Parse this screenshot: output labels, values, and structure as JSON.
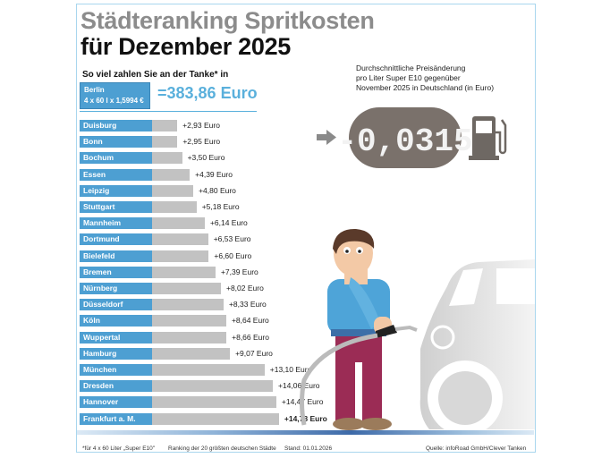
{
  "header": {
    "title_line1": "Städteranking Spritkosten",
    "title_line2": "für Dezember 2025",
    "subtitle": "So viel zahlen Sie an der Tanke* in"
  },
  "berlin": {
    "city": "Berlin",
    "formula": "4 x 60 l x 1,5994 €",
    "total": "=383,86 Euro"
  },
  "price_change": {
    "caption_lines": [
      "Durchschnittliche Preisänderung",
      "pro Liter Super E10 gegenüber",
      "November 2025 in Deutschland (in Euro)"
    ],
    "display": "-0,0315",
    "icon": "fuel-pump-icon",
    "arrow_icon": "arrow-right-icon"
  },
  "chart_data": {
    "type": "bar",
    "orientation": "horizontal",
    "title": "Städteranking Spritkosten für Dezember 2025",
    "categories": [
      "Duisburg",
      "Bonn",
      "Bochum",
      "Essen",
      "Leipzig",
      "Stuttgart",
      "Mannheim",
      "Dortmund",
      "Bielefeld",
      "Bremen",
      "Nürnberg",
      "Düsseldorf",
      "Köln",
      "Wuppertal",
      "Hamburg",
      "München",
      "Dresden",
      "Hannover",
      "Frankfurt a. M."
    ],
    "values": [
      2.93,
      2.95,
      3.5,
      4.39,
      4.8,
      5.18,
      6.14,
      6.53,
      6.6,
      7.39,
      8.02,
      8.33,
      8.64,
      8.66,
      9.07,
      13.1,
      14.06,
      14.47,
      14.78
    ],
    "labels": [
      "+2,93 Euro",
      "+2,95 Euro",
      "+3,50 Euro",
      "+4,39 Euro",
      "+4,80 Euro",
      "+5,18 Euro",
      "+6,14 Euro",
      "+6,53 Euro",
      "+6,60 Euro",
      "+7,39 Euro",
      "+8,02 Euro",
      "+8,33 Euro",
      "+8,64 Euro",
      "+8,66 Euro",
      "+9,07 Euro",
      "+13,10 Euro",
      "+14,06 Euro",
      "+14,47 Euro",
      "+14,78 Euro"
    ],
    "unit": "Euro",
    "colors": {
      "label_box": "#4d9fd2",
      "bar": "#c2c2c2"
    },
    "grid": false
  },
  "footer": {
    "note": "*für 4 x 60 Liter „Super E10\"",
    "ranking": "Ranking der 20 größten deutschen Städte",
    "date": "Stand: 01.01.2026",
    "source": "Quelle: infoRoad GmbH/Clever Tanken"
  }
}
